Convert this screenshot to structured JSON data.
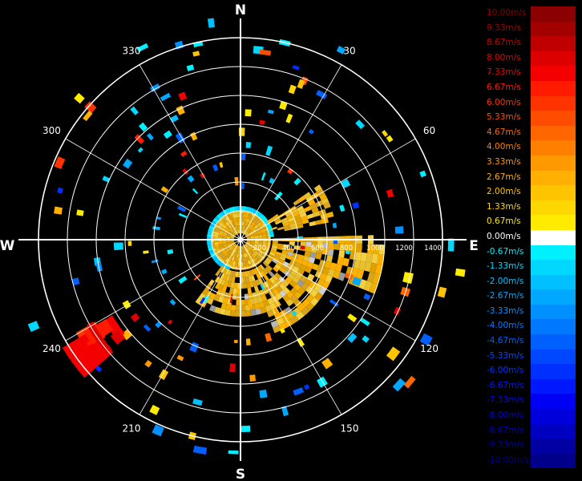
{
  "radar": {
    "cardinals": {
      "north": "N",
      "south": "S",
      "east": "E",
      "west": "W"
    },
    "azimuth_labels": [
      {
        "deg": 30,
        "label": "30"
      },
      {
        "deg": 60,
        "label": "60"
      },
      {
        "deg": 120,
        "label": "120"
      },
      {
        "deg": 150,
        "label": "150"
      },
      {
        "deg": 210,
        "label": "210"
      },
      {
        "deg": 240,
        "label": "240"
      },
      {
        "deg": 300,
        "label": "300"
      },
      {
        "deg": 330,
        "label": "330"
      }
    ],
    "range_labels": [
      "200",
      "400",
      "600",
      "800",
      "1000",
      "1200",
      "1400"
    ],
    "center_marker": "✳"
  },
  "legend": {
    "entries": [
      {
        "label": "10.00m/s",
        "color": "#8b0000"
      },
      {
        "label": "9.33m/s",
        "color": "#a30000"
      },
      {
        "label": "8.67m/s",
        "color": "#c00000"
      },
      {
        "label": "8.00m/s",
        "color": "#dd0000"
      },
      {
        "label": "7.33m/s",
        "color": "#f50000"
      },
      {
        "label": "6.67m/s",
        "color": "#ff1a00"
      },
      {
        "label": "6.00m/s",
        "color": "#ff3300"
      },
      {
        "label": "5.33m/s",
        "color": "#ff4d00"
      },
      {
        "label": "4.67m/s",
        "color": "#ff6600"
      },
      {
        "label": "4.00m/s",
        "color": "#ff8000"
      },
      {
        "label": "3.33m/s",
        "color": "#ff9900"
      },
      {
        "label": "2.67m/s",
        "color": "#ffb000"
      },
      {
        "label": "2.00m/s",
        "color": "#ffc400"
      },
      {
        "label": "1.33m/s",
        "color": "#ffd700"
      },
      {
        "label": "0.67m/s",
        "color": "#ffeb00"
      },
      {
        "label": "0.00m/s",
        "color": "#ffffff"
      },
      {
        "label": "-0.67m/s",
        "color": "#00f0ff"
      },
      {
        "label": "-1.33m/s",
        "color": "#00d8ff"
      },
      {
        "label": "-2.00m/s",
        "color": "#00c0ff"
      },
      {
        "label": "-2.67m/s",
        "color": "#00a8ff"
      },
      {
        "label": "-3.33m/s",
        "color": "#0090ff"
      },
      {
        "label": "-4.00m/s",
        "color": "#0078ff"
      },
      {
        "label": "-4.67m/s",
        "color": "#0060ff"
      },
      {
        "label": "-5.33m/s",
        "color": "#0048ff"
      },
      {
        "label": "-6.00m/s",
        "color": "#0030ff"
      },
      {
        "label": "-6.67m/s",
        "color": "#0018ff"
      },
      {
        "label": "-7.33m/s",
        "color": "#0000f5"
      },
      {
        "label": "-8.00m/s",
        "color": "#0000dd"
      },
      {
        "label": "-8.67m/s",
        "color": "#0000c0"
      },
      {
        "label": "-9.33m/s",
        "color": "#0000a3"
      },
      {
        "label": "-10.00m/s",
        "color": "#00008b"
      }
    ]
  }
}
